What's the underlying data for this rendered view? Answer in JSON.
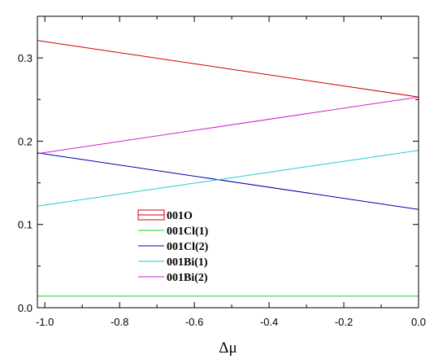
{
  "chart_data": {
    "type": "line",
    "title": "",
    "xlabel": "Δμ",
    "ylabel": "",
    "xlim": [
      -1.02,
      0.0
    ],
    "ylim": [
      0.0,
      0.35
    ],
    "x_ticks": [
      -1.0,
      -0.8,
      -0.6,
      -0.4,
      -0.2,
      0.0
    ],
    "x_tick_labels": [
      "-1.0",
      "-0.8",
      "-0.6",
      "-0.4",
      "-0.2",
      "0.0"
    ],
    "y_ticks": [
      0.0,
      0.1,
      0.2,
      0.3
    ],
    "y_tick_labels": [
      "0.0",
      "0.1",
      "0.2",
      "0.3"
    ],
    "grid": false,
    "legend_position": "center-left",
    "series": [
      {
        "name": "001O",
        "color": "#cc0000",
        "x": [
          -1.02,
          0.0
        ],
        "y": [
          0.321,
          0.253
        ],
        "legend_style": "box"
      },
      {
        "name": "001Cl(1)",
        "color": "#22cc22",
        "x": [
          -1.02,
          0.0
        ],
        "y": [
          0.014,
          0.014
        ]
      },
      {
        "name": "001Cl(2)",
        "color": "#0000aa",
        "x": [
          -1.02,
          0.0
        ],
        "y": [
          0.186,
          0.118
        ]
      },
      {
        "name": "001Bi(1)",
        "color": "#22cccc",
        "x": [
          -1.02,
          0.0
        ],
        "y": [
          0.122,
          0.189
        ]
      },
      {
        "name": "001Bi(2)",
        "color": "#cc22cc",
        "x": [
          -1.02,
          0.0
        ],
        "y": [
          0.185,
          0.253
        ]
      }
    ]
  }
}
